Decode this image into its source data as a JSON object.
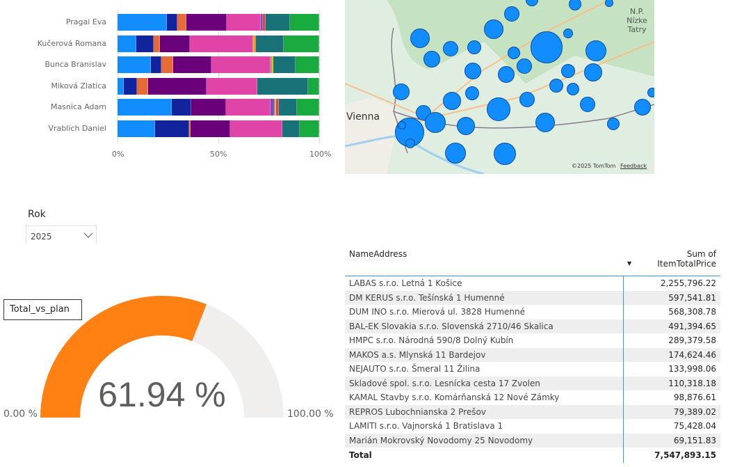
{
  "bar_chart": {
    "categories": [
      "Pragai Eva",
      "Kučerová Romana",
      "Bunca Branislav",
      "Miková Zlatica",
      "Masnica Adam",
      "Vrablich Daniel"
    ],
    "x_ticks": [
      "0%",
      "50%",
      "100%"
    ],
    "colors": [
      "#118dff",
      "#12239e",
      "#e66c37",
      "#6b007b",
      "#e044a7",
      "#744ec2",
      "#d9b300",
      "#d64550",
      "#197278",
      "#1aab40"
    ],
    "segments": [
      [
        [
          "#118dff",
          24.4
        ],
        [
          "#12239e",
          5.4
        ],
        [
          "#e66c37",
          4.2
        ],
        [
          "#6b007b",
          20.1
        ],
        [
          "#e044a7",
          17.0
        ],
        [
          "#744ec2",
          0.9
        ],
        [
          "#d64550",
          1.3
        ],
        [
          "#197278",
          12.2
        ],
        [
          "#1aab40",
          14.5
        ]
      ],
      [
        [
          "#118dff",
          9.3
        ],
        [
          "#12239e",
          8.6
        ],
        [
          "#e66c37",
          3.3
        ],
        [
          "#6b007b",
          14.6
        ],
        [
          "#e044a7",
          31.5
        ],
        [
          "#d9b300",
          0.7
        ],
        [
          "#e66c37",
          0.5
        ],
        [
          "#197278",
          14.1
        ],
        [
          "#1aab40",
          17.4
        ]
      ],
      [
        [
          "#118dff",
          16.5
        ],
        [
          "#12239e",
          5.2
        ],
        [
          "#e66c37",
          6.0
        ],
        [
          "#6b007b",
          18.7
        ],
        [
          "#e044a7",
          29.4
        ],
        [
          "#744ec2",
          0.4
        ],
        [
          "#d9b300",
          1.0
        ],
        [
          "#197278",
          11.1
        ],
        [
          "#1aab40",
          11.7
        ]
      ],
      [
        [
          "#118dff",
          3.1
        ],
        [
          "#12239e",
          6.5
        ],
        [
          "#e66c37",
          5.5
        ],
        [
          "#6b007b",
          29.1
        ],
        [
          "#e044a7",
          25.0
        ],
        [
          "#197278",
          25.4
        ],
        [
          "#1aab40",
          5.4
        ]
      ],
      [
        [
          "#118dff",
          27.0
        ],
        [
          "#12239e",
          9.5
        ],
        [
          "#6b007b",
          17.3
        ],
        [
          "#e044a7",
          22.1
        ],
        [
          "#744ec2",
          2.1
        ],
        [
          "#d9b300",
          0.6
        ],
        [
          "#d64550",
          1.5
        ],
        [
          "#197278",
          8.9
        ],
        [
          "#1aab40",
          11.0
        ]
      ],
      [
        [
          "#118dff",
          18.6
        ],
        [
          "#12239e",
          16.9
        ],
        [
          "#e66c37",
          0.8
        ],
        [
          "#6b007b",
          19.4
        ],
        [
          "#e044a7",
          25.9
        ],
        [
          "#197278",
          8.8
        ],
        [
          "#1aab40",
          9.6
        ]
      ]
    ]
  },
  "map": {
    "labels": [
      "Vienna",
      "N.P. Nízke Tatry"
    ],
    "copyright": "©2025 TomTom",
    "feedback": "Feedback"
  },
  "slicer": {
    "title": "Rok",
    "value": "2025"
  },
  "gauge": {
    "title": "Total_vs_plan",
    "value_text": "61.94 %",
    "value": 61.94,
    "min_label": "0.00 %",
    "max_label": "100.00 %",
    "fill_color": "#ff8114",
    "track_color": "#f0efee"
  },
  "table": {
    "headers": [
      "NameAddress",
      "Sum of ItemTotalPrice"
    ],
    "rows": [
      [
        "LABAS s.r.o. Letná 1 Košice",
        "2,255,796.22"
      ],
      [
        "DM KERUS s.r.o. Tešínská 1 Humenné",
        "597,541.81"
      ],
      [
        "DUM INO s.r.o. Mierová ul. 3828 Humenné",
        "568,308.78"
      ],
      [
        "BAL-EK Slovakia s.r.o. Slovenská 2710/46 Skalica",
        "491,394.65"
      ],
      [
        "HMPC s.r.o. Národná 590/8 Dolný Kubín",
        "289,379.58"
      ],
      [
        "MAKOS a.s. Mlynská 11 Bardejov",
        "174,624.46"
      ],
      [
        "NEJAUTO s.r.o. Šmeral 11 Žilina",
        "133,998.06"
      ],
      [
        "Skladové spol. s.r.o. Lesnícka cesta 17 Zvolen",
        "110,318.18"
      ],
      [
        "KAMAL Stavby s.r.o. Komárňanská 12 Nové Zámky",
        "98,876.61"
      ],
      [
        "REPROS Lubochnianska 2 Prešov",
        "79,389.02"
      ],
      [
        "LAMITI s.r.o. Vajnorská 1 Bratislava 1",
        "75,428.04"
      ],
      [
        "Marián Mokrovský Novodomy 25 Novodomy",
        "69,151.83"
      ]
    ],
    "total_label": "Total",
    "total_value": "7,547,893.15"
  }
}
